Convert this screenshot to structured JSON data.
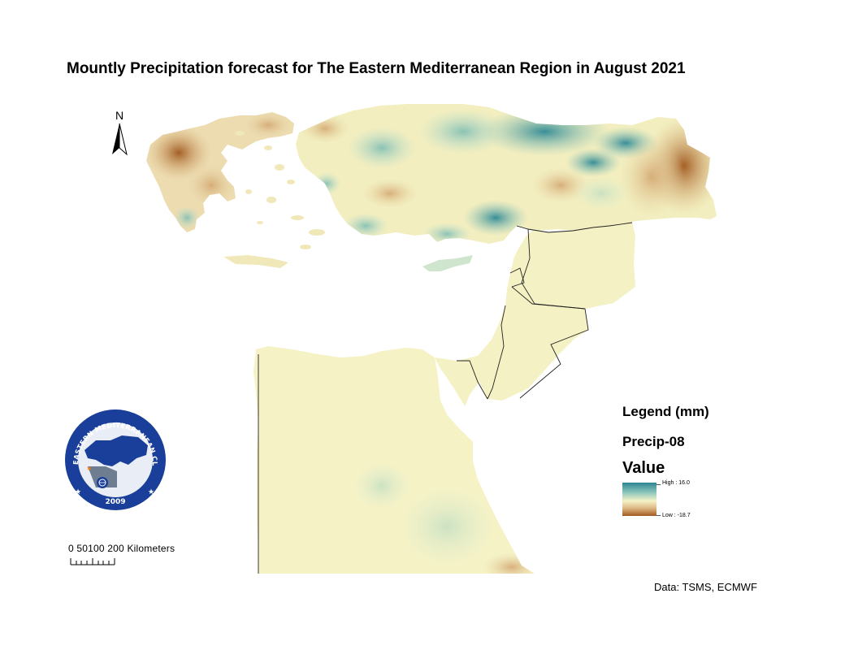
{
  "title": "Mountly Precipitation forecast for The Eastern Mediterranean Region in August 2021",
  "north_arrow": {
    "label": "N",
    "icon": "north-arrow-icon"
  },
  "legend": {
    "heading": "Legend (mm)",
    "layer": "Precip-08",
    "field": "Value",
    "high_label": "High : 16.0",
    "low_label": "Low : -18.7",
    "high_value": 16.0,
    "low_value": -18.7,
    "colors": [
      "#2c8591",
      "#8fc7bd",
      "#f5f2c6",
      "#dcb47f",
      "#a0581e"
    ]
  },
  "scale_bar": {
    "label": "0 50100 200 Kilometers"
  },
  "data_source": "Data:  TSMS, ECMWF",
  "logo": {
    "ring_text": "EASTERN MEDITERRANEAN CLIMATE CENTRE",
    "year": "2009",
    "icon": "wmo-emblem-icon"
  }
}
